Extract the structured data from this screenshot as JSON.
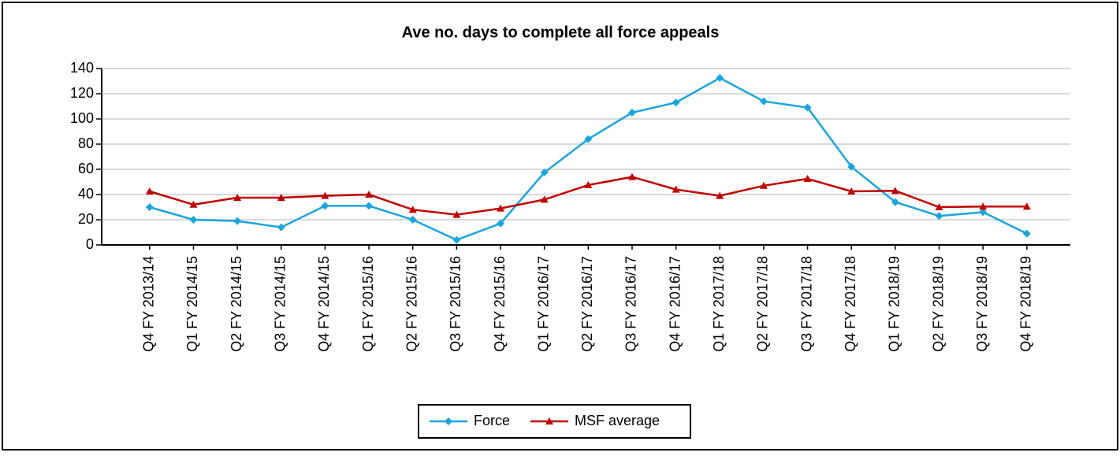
{
  "chart_data": {
    "type": "line",
    "title": "Ave no. days to complete all force appeals",
    "categories": [
      "Q4 FY 2013/14",
      "Q1 FY 2014/15",
      "Q2 FY 2014/15",
      "Q3 FY 2014/15",
      "Q4 FY 2014/15",
      "Q1 FY 2015/16",
      "Q2 FY 2015/16",
      "Q3 FY 2015/16",
      "Q4 FY 2015/16",
      "Q1 FY 2016/17",
      "Q2 FY 2016/17",
      "Q3 FY 2016/17",
      "Q4 FY 2016/17",
      "Q1 FY 2017/18",
      "Q2 FY 2017/18",
      "Q3 FY 2017/18",
      "Q4 FY 2017/18",
      "Q1 FY 2018/19",
      "Q2 FY 2018/19",
      "Q3 FY 2018/19",
      "Q4 FY 2018/19"
    ],
    "series": [
      {
        "name": "Force",
        "color": "#1aa5df",
        "marker": "diamond",
        "values": [
          30,
          20,
          19,
          14,
          31,
          31,
          20,
          4,
          17,
          57.5,
          84,
          105,
          113,
          132.5,
          114,
          109,
          62,
          34,
          23,
          26,
          9
        ]
      },
      {
        "name": "MSF average",
        "color": "#c00000",
        "marker": "triangle",
        "values": [
          42.5,
          32,
          37.5,
          37.5,
          39,
          40,
          28,
          24,
          29,
          36,
          47.5,
          54,
          44,
          39,
          47,
          52.5,
          42.5,
          43,
          30,
          30.5,
          30.5
        ]
      }
    ],
    "ylim": [
      0,
      140
    ],
    "yticks": [
      0,
      20,
      40,
      60,
      80,
      100,
      120,
      140
    ],
    "grid": true,
    "legend": "bottom"
  }
}
